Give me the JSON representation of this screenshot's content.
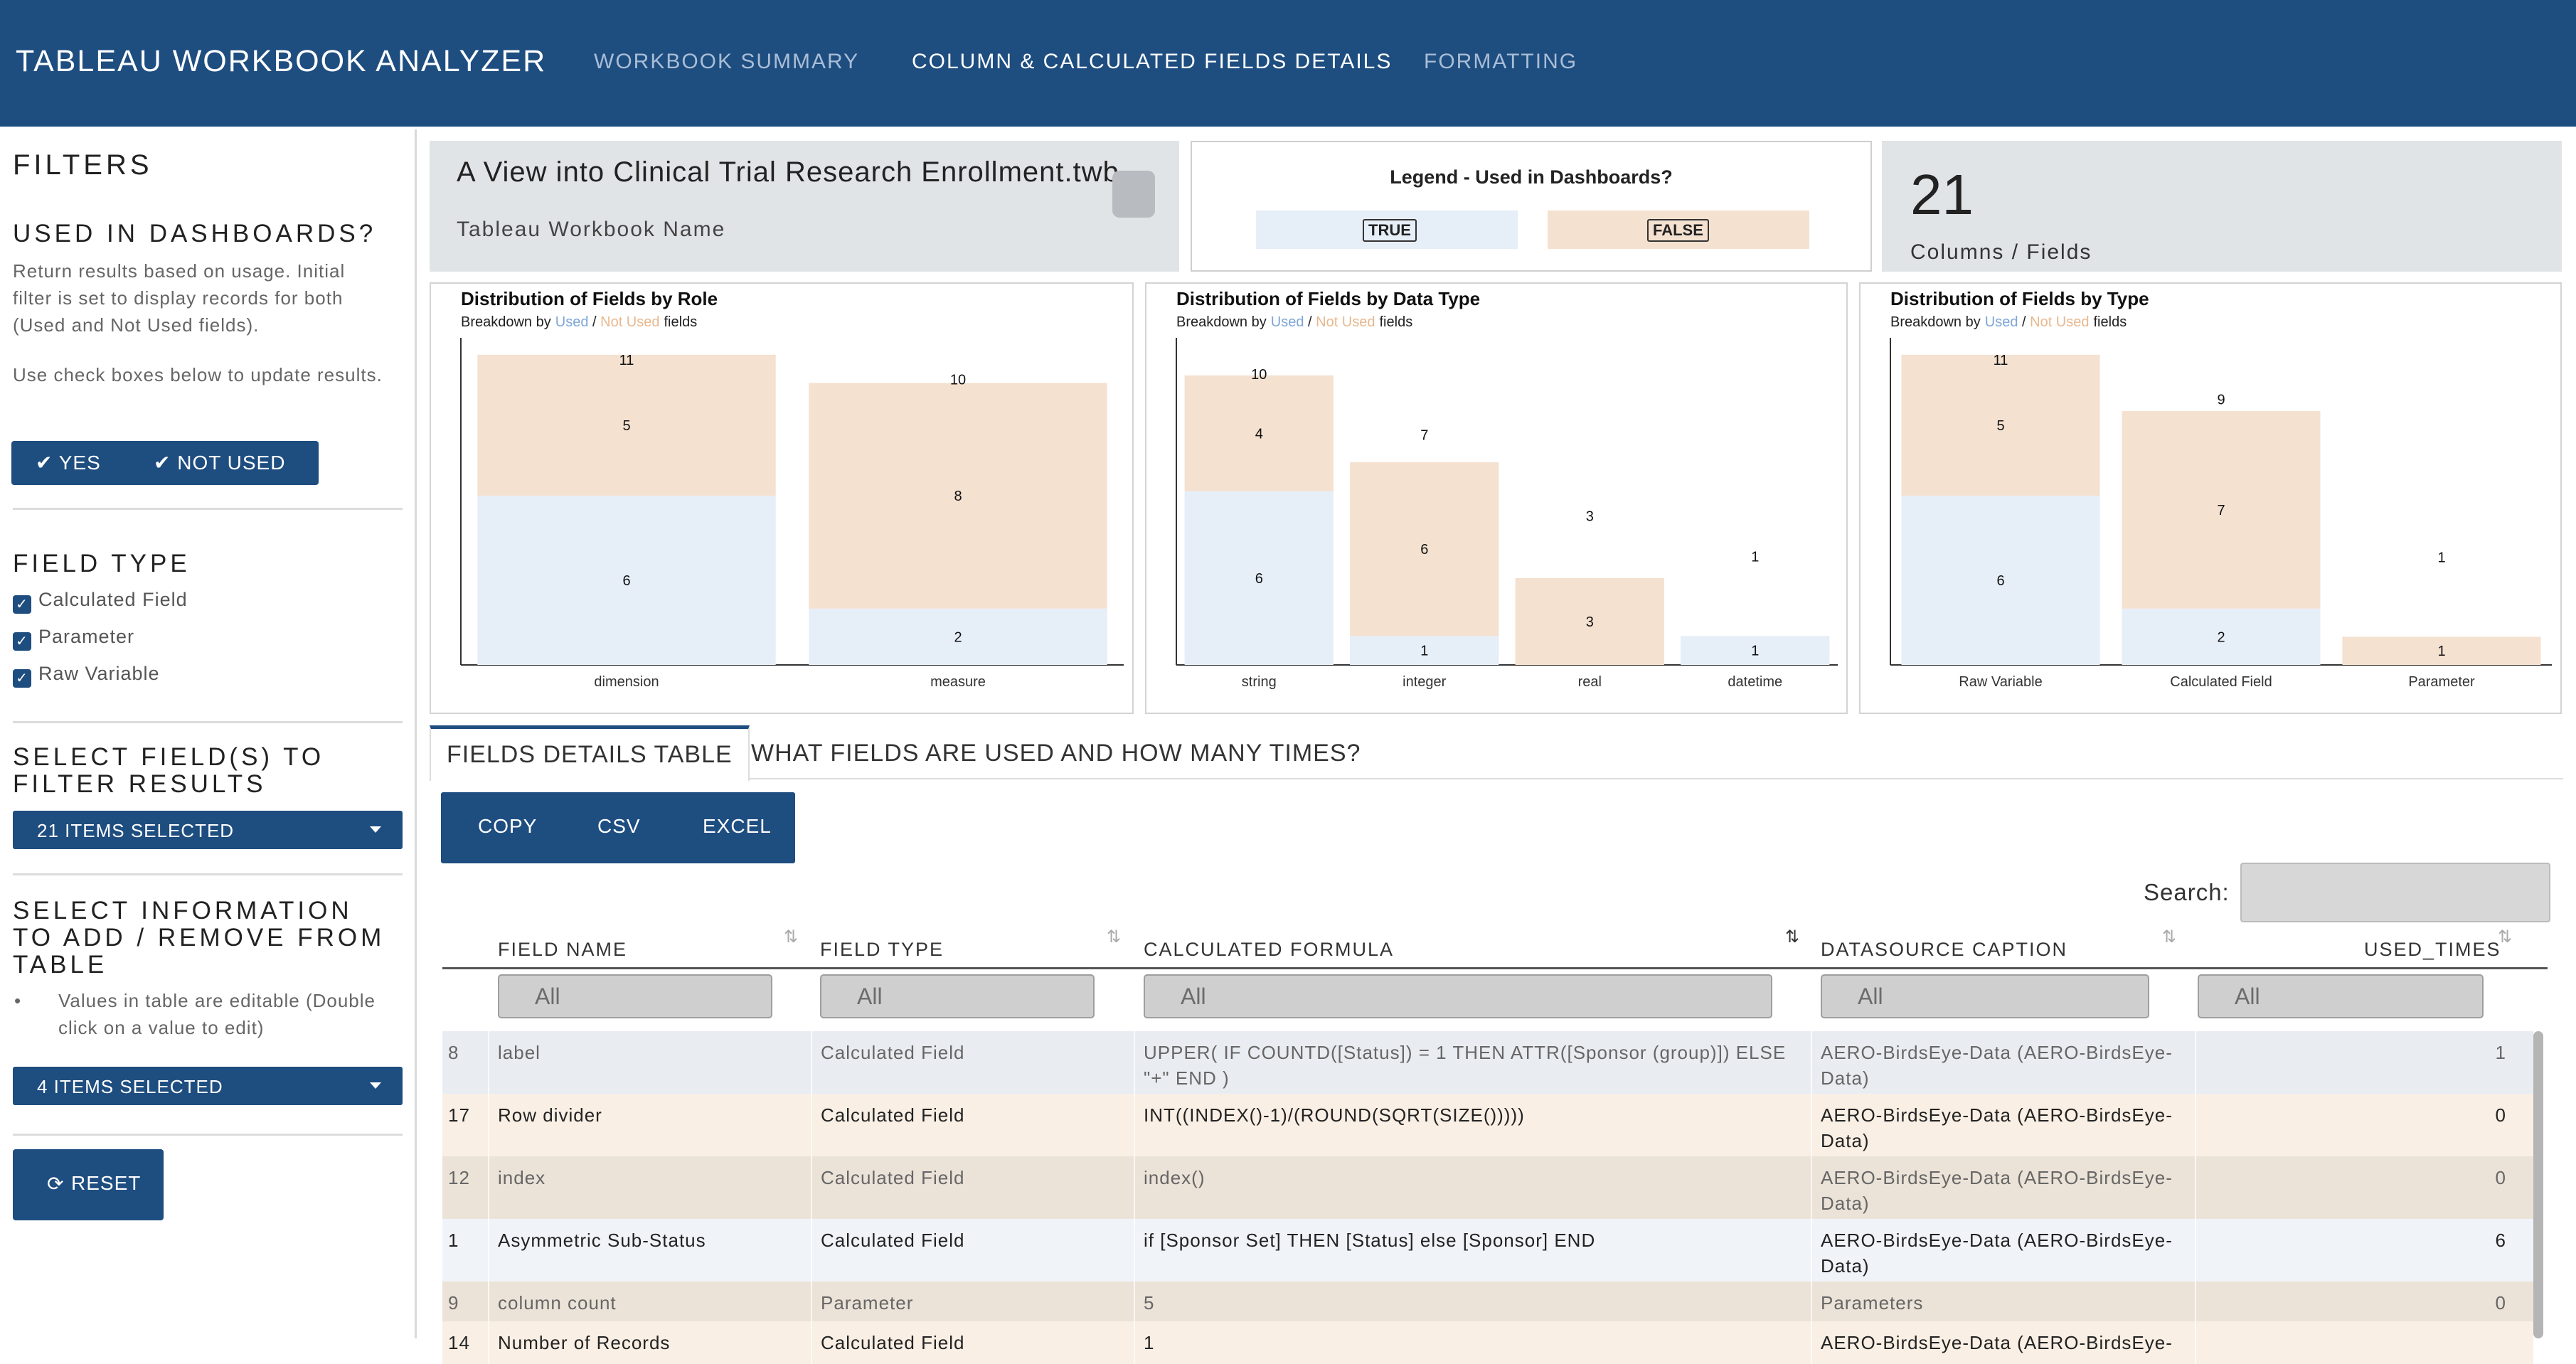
{
  "header": {
    "brand": "TABLEAU WORKBOOK ANALYZER",
    "nav": [
      "WORKBOOK SUMMARY",
      "COLUMN & CALCULATED FIELDS DETAILS",
      "FORMATTING"
    ]
  },
  "sidebar": {
    "filters_title": "FILTERS",
    "used_title": "USED IN DASHBOARDS?",
    "used_desc": "Return results based on usage. Initial filter is set to display records for both (Used and Not Used fields).",
    "used_hint": "Use check boxes below to update results.",
    "yes_label": "YES",
    "not_used_label": "NOT USED",
    "field_type_title": "FIELD TYPE",
    "field_types": [
      "Calculated Field",
      "Parameter",
      "Raw Variable"
    ],
    "select_fields_title": "SELECT FIELD(S) TO FILTER RESULTS",
    "select_fields_value": "21 ITEMS SELECTED",
    "select_info_title": "SELECT INFORMATION TO ADD / REMOVE FROM TABLE",
    "select_info_note": "Values in table are editable (Double click on a value to edit)",
    "select_info_value": "4 ITEMS SELECTED",
    "reset_label": "RESET"
  },
  "summary": {
    "workbook_name": "A View into Clinical Trial Research Enrollment.twb",
    "workbook_label": "Tableau Workbook Name",
    "legend_title": "Legend - Used in Dashboards?",
    "legend_true": "TRUE",
    "legend_false": "FALSE",
    "count": "21",
    "count_label": "Columns / Fields"
  },
  "colors": {
    "header_bg": "#1e4d80",
    "used": "#e6eef8",
    "not_used": "#f4e1d0",
    "used_text": "#7ea6d6",
    "not_used_text": "#e8b88e"
  },
  "chart_data": [
    {
      "type": "bar",
      "title": "Distribution of Fields by Role",
      "subtitle_prefix": "Breakdown by",
      "subtitle_used": "Used",
      "subtitle_sep": " / ",
      "subtitle_not_used": "Not Used",
      "subtitle_suffix": "fields",
      "categories": [
        "dimension",
        "measure"
      ],
      "series": [
        {
          "name": "Used",
          "values": [
            6,
            2
          ]
        },
        {
          "name": "Not Used",
          "values": [
            5,
            8
          ]
        }
      ],
      "totals": [
        11,
        10
      ],
      "ylim": [
        0,
        11.5
      ]
    },
    {
      "type": "bar",
      "title": "Distribution of Fields by Data Type",
      "subtitle_prefix": "Breakdown by",
      "subtitle_used": "Used",
      "subtitle_sep": " / ",
      "subtitle_not_used": "Not Used",
      "subtitle_suffix": "fields",
      "categories": [
        "string",
        "integer",
        "real",
        "datetime"
      ],
      "series": [
        {
          "name": "Used",
          "values": [
            6,
            1,
            0,
            1
          ]
        },
        {
          "name": "Not Used",
          "values": [
            4,
            6,
            3,
            0
          ]
        }
      ],
      "totals": [
        10,
        7,
        3,
        1
      ],
      "ylim": [
        0,
        11.2
      ]
    },
    {
      "type": "bar",
      "title": "Distribution of Fields by Type",
      "subtitle_prefix": "Breakdown by",
      "subtitle_used": "Used",
      "subtitle_sep": " / ",
      "subtitle_not_used": "Not Used",
      "subtitle_suffix": "fields",
      "categories": [
        "Raw Variable",
        "Calculated Field",
        "Parameter"
      ],
      "series": [
        {
          "name": "Used",
          "values": [
            6,
            2,
            0
          ]
        },
        {
          "name": "Not Used",
          "values": [
            5,
            7,
            1
          ]
        }
      ],
      "totals": [
        11,
        9,
        1
      ],
      "ylim": [
        0,
        11.5
      ]
    }
  ],
  "tabs": [
    "FIELDS DETAILS TABLE",
    "WHAT FIELDS ARE USED AND HOW MANY TIMES?"
  ],
  "export_buttons": [
    "COPY",
    "CSV",
    "EXCEL"
  ],
  "search_label": "Search:",
  "table": {
    "columns": [
      "FIELD NAME",
      "FIELD TYPE",
      "CALCULATED FORMULA",
      "DATASOURCE CAPTION",
      "USED_TIMES"
    ],
    "filter_placeholder": "All",
    "rows": [
      {
        "id": "8",
        "name": "label",
        "type": "Calculated Field",
        "formula": "UPPER( IF COUNTD([Status]) = 1 THEN ATTR([Sponsor (group)]) ELSE \"+\" END )",
        "source": "AERO-BirdsEye-Data (AERO-BirdsEye-Data)",
        "used": "1",
        "status": "used"
      },
      {
        "id": "17",
        "name": "Row divider",
        "type": "Calculated Field",
        "formula": "INT((INDEX()-1)/(ROUND(SQRT(SIZE()))))",
        "source": "AERO-BirdsEye-Data (AERO-BirdsEye-Data)",
        "used": "0",
        "status": "not_used"
      },
      {
        "id": "12",
        "name": "index",
        "type": "Calculated Field",
        "formula": "index()",
        "source": "AERO-BirdsEye-Data (AERO-BirdsEye-Data)",
        "used": "0",
        "status": "not_used_dark"
      },
      {
        "id": "1",
        "name": "Asymmetric Sub-Status",
        "type": "Calculated Field",
        "formula": "if [Sponsor Set] THEN [Status] else [Sponsor] END",
        "source": "AERO-BirdsEye-Data (AERO-BirdsEye-Data)",
        "used": "6",
        "status": "used_light"
      },
      {
        "id": "9",
        "name": "column count",
        "type": "Parameter",
        "formula": "5",
        "source": "Parameters",
        "used": "0",
        "status": "not_used_dark"
      },
      {
        "id": "14",
        "name": "Number of Records",
        "type": "Calculated Field",
        "formula": "1",
        "source": "AERO-BirdsEye-Data (AERO-BirdsEye-",
        "used": "",
        "status": "not_used"
      }
    ]
  }
}
